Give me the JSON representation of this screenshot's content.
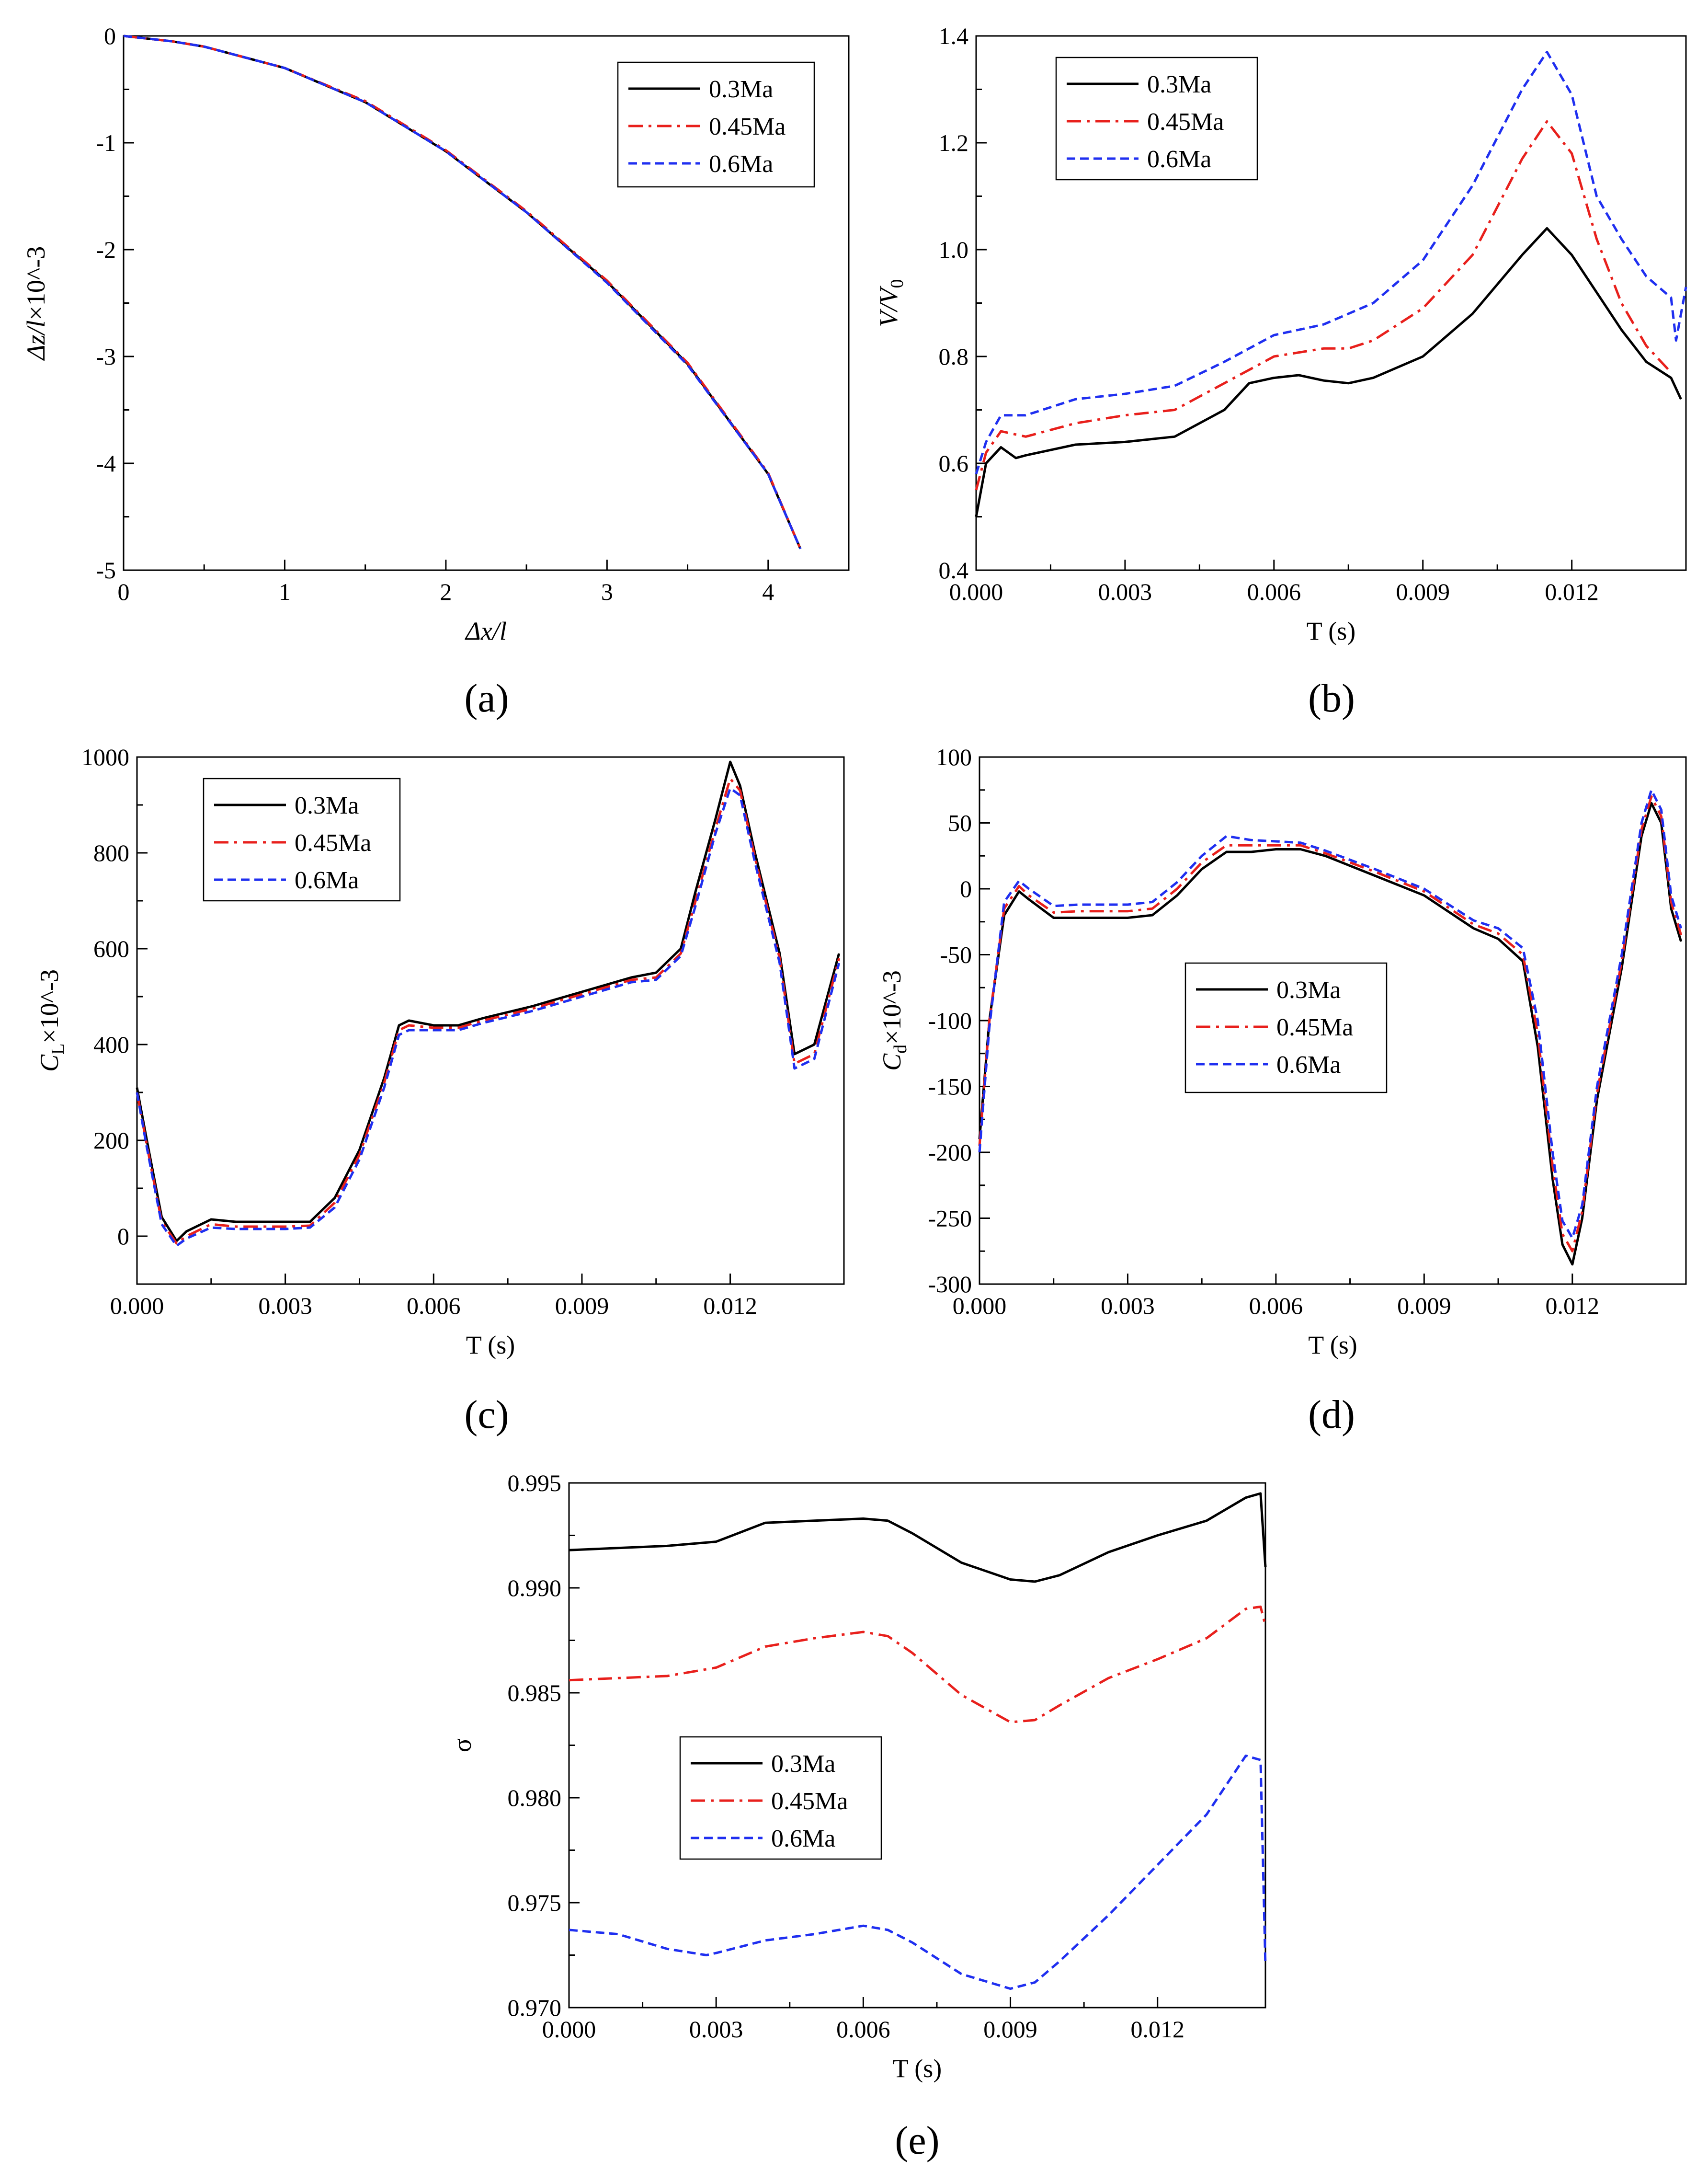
{
  "figure": {
    "panels": [
      "a",
      "b",
      "c",
      "d",
      "e"
    ],
    "series_colors": {
      "0.3Ma": "#000000",
      "0.45Ma": "#e8201c",
      "0.6Ma": "#1f2ff0"
    }
  },
  "chart_data": [
    {
      "id": "a",
      "type": "line",
      "caption": "(a)",
      "xlabel": "Δx/l",
      "ylabel": "Δz/l×10^-3",
      "xlim": [
        0,
        4.5
      ],
      "ylim": [
        -5,
        0
      ],
      "xticks": [
        0,
        1,
        2,
        3,
        4
      ],
      "yticks": [
        0,
        -1,
        -2,
        -3,
        -4,
        -5
      ],
      "xtick_labels": [
        "0",
        "1",
        "2",
        "3",
        "4"
      ],
      "ytick_labels": [
        "0",
        "-1",
        "-2",
        "-3",
        "-4",
        "-5"
      ],
      "legend": [
        "0.3Ma",
        "0.45Ma",
        "0.6Ma"
      ],
      "legend_position": "top-right",
      "series": [
        {
          "name": "0.3Ma",
          "x": [
            0,
            0.3,
            0.5,
            1.0,
            1.5,
            2.0,
            2.5,
            3.0,
            3.5,
            4.0,
            4.2
          ],
          "y": [
            0,
            -0.05,
            -0.1,
            -0.3,
            -0.62,
            -1.08,
            -1.65,
            -2.3,
            -3.07,
            -4.1,
            -4.8
          ]
        },
        {
          "name": "0.45Ma",
          "x": [
            0,
            0.3,
            0.5,
            1.0,
            1.5,
            2.0,
            2.5,
            3.0,
            3.5,
            4.0,
            4.2
          ],
          "y": [
            0,
            -0.05,
            -0.1,
            -0.3,
            -0.61,
            -1.07,
            -1.64,
            -2.29,
            -3.06,
            -4.09,
            -4.8
          ]
        },
        {
          "name": "0.6Ma",
          "x": [
            0,
            0.3,
            0.5,
            1.0,
            1.5,
            2.0,
            2.5,
            3.0,
            3.5,
            4.0,
            4.2
          ],
          "y": [
            0,
            -0.05,
            -0.1,
            -0.3,
            -0.62,
            -1.08,
            -1.65,
            -2.31,
            -3.08,
            -4.1,
            -4.8
          ]
        }
      ]
    },
    {
      "id": "b",
      "type": "line",
      "caption": "(b)",
      "xlabel": "T (s)",
      "ylabel": "V/V0",
      "xlim": [
        0,
        0.0143
      ],
      "ylim": [
        0.4,
        1.4
      ],
      "xticks": [
        0,
        0.003,
        0.006,
        0.009,
        0.012
      ],
      "yticks": [
        0.4,
        0.6,
        0.8,
        1.0,
        1.2,
        1.4
      ],
      "xtick_labels": [
        "0.000",
        "0.003",
        "0.006",
        "0.009",
        "0.012"
      ],
      "ytick_labels": [
        "0.4",
        "0.6",
        "0.8",
        "1.0",
        "1.2",
        "1.4"
      ],
      "legend": [
        "0.3Ma",
        "0.45Ma",
        "0.6Ma"
      ],
      "legend_position": "top-left",
      "series": [
        {
          "name": "0.3Ma",
          "x": [
            0,
            0.0002,
            0.0005,
            0.0008,
            0.001,
            0.002,
            0.003,
            0.004,
            0.005,
            0.0055,
            0.006,
            0.0065,
            0.007,
            0.0075,
            0.008,
            0.009,
            0.01,
            0.011,
            0.0115,
            0.012,
            0.0125,
            0.013,
            0.0135,
            0.014,
            0.0142
          ],
          "y": [
            0.5,
            0.6,
            0.63,
            0.61,
            0.615,
            0.635,
            0.64,
            0.65,
            0.7,
            0.75,
            0.76,
            0.765,
            0.755,
            0.75,
            0.76,
            0.8,
            0.88,
            0.99,
            1.04,
            0.99,
            0.92,
            0.85,
            0.79,
            0.76,
            0.72
          ]
        },
        {
          "name": "0.45Ma",
          "x": [
            0,
            0.0002,
            0.0005,
            0.001,
            0.002,
            0.003,
            0.004,
            0.005,
            0.006,
            0.007,
            0.0075,
            0.008,
            0.009,
            0.01,
            0.011,
            0.0115,
            0.012,
            0.0125,
            0.013,
            0.0135,
            0.014
          ],
          "y": [
            0.55,
            0.62,
            0.66,
            0.65,
            0.675,
            0.69,
            0.7,
            0.75,
            0.8,
            0.815,
            0.815,
            0.83,
            0.89,
            0.99,
            1.17,
            1.24,
            1.18,
            1.02,
            0.9,
            0.82,
            0.77
          ]
        },
        {
          "name": "0.6Ma",
          "x": [
            0,
            0.0002,
            0.0005,
            0.001,
            0.002,
            0.003,
            0.004,
            0.005,
            0.006,
            0.007,
            0.008,
            0.009,
            0.01,
            0.011,
            0.0115,
            0.012,
            0.0125,
            0.013,
            0.0135,
            0.014,
            0.0141,
            0.0143
          ],
          "y": [
            0.58,
            0.64,
            0.69,
            0.69,
            0.72,
            0.73,
            0.745,
            0.79,
            0.84,
            0.86,
            0.9,
            0.98,
            1.12,
            1.3,
            1.37,
            1.29,
            1.1,
            1.02,
            0.95,
            0.91,
            0.83,
            0.93
          ]
        }
      ]
    },
    {
      "id": "c",
      "type": "line",
      "caption": "(c)",
      "xlabel": "T (s)",
      "ylabel": "CL×10^-3",
      "xlim": [
        0,
        0.0143
      ],
      "ylim": [
        -100,
        1000
      ],
      "xticks": [
        0,
        0.003,
        0.006,
        0.009,
        0.012
      ],
      "yticks": [
        0,
        200,
        400,
        600,
        800,
        1000
      ],
      "xtick_labels": [
        "0.000",
        "0.003",
        "0.006",
        "0.009",
        "0.012"
      ],
      "ytick_labels": [
        "0",
        "200",
        "400",
        "600",
        "800",
        "1000"
      ],
      "legend": [
        "0.3Ma",
        "0.45Ma",
        "0.6Ma"
      ],
      "legend_position": "top-left",
      "series": [
        {
          "name": "0.3Ma",
          "x": [
            0,
            0.0002,
            0.0005,
            0.0008,
            0.001,
            0.0015,
            0.002,
            0.003,
            0.0035,
            0.004,
            0.0045,
            0.005,
            0.0053,
            0.0055,
            0.006,
            0.0065,
            0.007,
            0.008,
            0.009,
            0.01,
            0.0105,
            0.011,
            0.0113,
            0.0117,
            0.012,
            0.0122,
            0.0125,
            0.013,
            0.0133,
            0.0137,
            0.0142
          ],
          "y": [
            310,
            200,
            40,
            -10,
            10,
            35,
            30,
            30,
            30,
            80,
            180,
            330,
            440,
            450,
            440,
            440,
            455,
            480,
            510,
            540,
            550,
            600,
            720,
            870,
            990,
            940,
            800,
            590,
            380,
            400,
            590
          ]
        },
        {
          "name": "0.45Ma",
          "x": [
            0,
            0.0002,
            0.0005,
            0.0008,
            0.001,
            0.0015,
            0.002,
            0.003,
            0.0035,
            0.004,
            0.0045,
            0.005,
            0.0053,
            0.0055,
            0.006,
            0.0065,
            0.007,
            0.008,
            0.009,
            0.01,
            0.0105,
            0.011,
            0.0113,
            0.0117,
            0.012,
            0.0122,
            0.0125,
            0.013,
            0.0133,
            0.0137,
            0.0142
          ],
          "y": [
            300,
            190,
            30,
            -15,
            0,
            25,
            20,
            20,
            22,
            70,
            170,
            320,
            430,
            440,
            435,
            435,
            450,
            475,
            505,
            535,
            540,
            590,
            700,
            850,
            955,
            930,
            790,
            580,
            360,
            380,
            580
          ]
        },
        {
          "name": "0.6Ma",
          "x": [
            0,
            0.0002,
            0.0005,
            0.0008,
            0.001,
            0.0015,
            0.002,
            0.003,
            0.0035,
            0.004,
            0.0045,
            0.005,
            0.0053,
            0.0055,
            0.006,
            0.0065,
            0.007,
            0.008,
            0.009,
            0.01,
            0.0105,
            0.011,
            0.0113,
            0.0117,
            0.012,
            0.0122,
            0.0125,
            0.013,
            0.0133,
            0.0137,
            0.0142
          ],
          "y": [
            300,
            185,
            25,
            -20,
            -5,
            18,
            15,
            15,
            18,
            60,
            160,
            310,
            420,
            430,
            430,
            430,
            445,
            470,
            500,
            530,
            535,
            585,
            690,
            840,
            935,
            920,
            780,
            570,
            350,
            370,
            570
          ]
        }
      ]
    },
    {
      "id": "d",
      "type": "line",
      "caption": "(d)",
      "xlabel": "T (s)",
      "ylabel": "Cd×10^-3",
      "xlim": [
        0,
        0.0143
      ],
      "ylim": [
        -300,
        100
      ],
      "xticks": [
        0,
        0.003,
        0.006,
        0.009,
        0.012
      ],
      "yticks": [
        100,
        50,
        0,
        -50,
        -100,
        -150,
        -200,
        -250,
        -300
      ],
      "xtick_labels": [
        "0.000",
        "0.003",
        "0.006",
        "0.009",
        "0.012"
      ],
      "ytick_labels": [
        "100",
        "50",
        "0",
        "-50",
        "-100",
        "-150",
        "-200",
        "-250",
        "-300"
      ],
      "legend": [
        "0.3Ma",
        "0.45Ma",
        "0.6Ma"
      ],
      "legend_position": "center-right",
      "series": [
        {
          "name": "0.3Ma",
          "x": [
            0,
            0.0002,
            0.0005,
            0.0008,
            0.001,
            0.0015,
            0.002,
            0.003,
            0.0035,
            0.004,
            0.0045,
            0.005,
            0.0055,
            0.006,
            0.0065,
            0.007,
            0.008,
            0.009,
            0.01,
            0.0105,
            0.011,
            0.0113,
            0.0116,
            0.0118,
            0.012,
            0.0122,
            0.0125,
            0.0128,
            0.013,
            0.0132,
            0.0134,
            0.0136,
            0.0138,
            0.014,
            0.0142
          ],
          "y": [
            -190,
            -100,
            -20,
            -2,
            -8,
            -22,
            -22,
            -22,
            -20,
            -5,
            15,
            28,
            28,
            30,
            30,
            25,
            10,
            -5,
            -30,
            -38,
            -55,
            -120,
            -220,
            -270,
            -285,
            -250,
            -160,
            -100,
            -60,
            -10,
            40,
            65,
            50,
            -15,
            -40
          ]
        },
        {
          "name": "0.45Ma",
          "x": [
            0,
            0.0002,
            0.0005,
            0.0008,
            0.001,
            0.0015,
            0.002,
            0.003,
            0.0035,
            0.004,
            0.0045,
            0.005,
            0.0055,
            0.006,
            0.0065,
            0.007,
            0.008,
            0.009,
            0.01,
            0.0105,
            0.011,
            0.0113,
            0.0116,
            0.0118,
            0.012,
            0.0122,
            0.0125,
            0.0128,
            0.013,
            0.0132,
            0.0134,
            0.0136,
            0.0138,
            0.014,
            0.0142
          ],
          "y": [
            -195,
            -100,
            -15,
            2,
            -5,
            -18,
            -17,
            -17,
            -15,
            0,
            20,
            33,
            33,
            33,
            33,
            27,
            13,
            -2,
            -27,
            -34,
            -50,
            -110,
            -210,
            -262,
            -275,
            -245,
            -155,
            -95,
            -55,
            -5,
            45,
            70,
            55,
            -10,
            -35
          ]
        },
        {
          "name": "0.6Ma",
          "x": [
            0,
            0.0002,
            0.0005,
            0.0008,
            0.001,
            0.0015,
            0.002,
            0.003,
            0.0035,
            0.004,
            0.0045,
            0.005,
            0.0055,
            0.006,
            0.0065,
            0.007,
            0.008,
            0.009,
            0.01,
            0.0105,
            0.011,
            0.0113,
            0.0116,
            0.0118,
            0.012,
            0.0122,
            0.0125,
            0.0128,
            0.013,
            0.0132,
            0.0134,
            0.0136,
            0.0138,
            0.014,
            0.0142
          ],
          "y": [
            -200,
            -105,
            -10,
            6,
            0,
            -13,
            -12,
            -12,
            -10,
            5,
            25,
            40,
            37,
            36,
            35,
            29,
            15,
            0,
            -24,
            -30,
            -45,
            -100,
            -200,
            -252,
            -265,
            -240,
            -150,
            -90,
            -50,
            0,
            50,
            75,
            60,
            -5,
            -30
          ]
        }
      ]
    },
    {
      "id": "e",
      "type": "line",
      "caption": "(e)",
      "xlabel": "T (s)",
      "ylabel": "σ",
      "xlim": [
        0,
        0.0142
      ],
      "ylim": [
        0.97,
        0.995
      ],
      "xticks": [
        0,
        0.003,
        0.006,
        0.009,
        0.012
      ],
      "yticks": [
        0.97,
        0.975,
        0.98,
        0.985,
        0.99,
        0.995
      ],
      "xtick_labels": [
        "0.000",
        "0.003",
        "0.006",
        "0.009",
        "0.012"
      ],
      "ytick_labels": [
        "0.970",
        "0.975",
        "0.980",
        "0.985",
        "0.990",
        "0.995"
      ],
      "legend": [
        "0.3Ma",
        "0.45Ma",
        "0.6Ma"
      ],
      "legend_position": "center-left",
      "series": [
        {
          "name": "0.3Ma",
          "x": [
            0,
            0.001,
            0.002,
            0.003,
            0.004,
            0.005,
            0.006,
            0.0065,
            0.007,
            0.008,
            0.009,
            0.0095,
            0.01,
            0.011,
            0.012,
            0.013,
            0.0138,
            0.0141,
            0.0142
          ],
          "y": [
            0.9918,
            0.9919,
            0.992,
            0.9922,
            0.9931,
            0.9932,
            0.9933,
            0.9932,
            0.9926,
            0.9912,
            0.9904,
            0.9903,
            0.9906,
            0.9917,
            0.9925,
            0.9932,
            0.9943,
            0.9945,
            0.991
          ]
        },
        {
          "name": "0.45Ma",
          "x": [
            0,
            0.001,
            0.002,
            0.003,
            0.004,
            0.005,
            0.006,
            0.0065,
            0.007,
            0.008,
            0.009,
            0.0095,
            0.01,
            0.011,
            0.012,
            0.013,
            0.0138,
            0.0141,
            0.0142
          ],
          "y": [
            0.9856,
            0.9857,
            0.9858,
            0.9862,
            0.9872,
            0.9876,
            0.9879,
            0.9877,
            0.9869,
            0.9849,
            0.9836,
            0.9837,
            0.9844,
            0.9857,
            0.9866,
            0.9876,
            0.989,
            0.9891,
            0.9882
          ]
        },
        {
          "name": "0.6Ma",
          "x": [
            0,
            0.001,
            0.002,
            0.0028,
            0.003,
            0.004,
            0.005,
            0.006,
            0.0065,
            0.007,
            0.008,
            0.009,
            0.0095,
            0.01,
            0.011,
            0.012,
            0.013,
            0.0138,
            0.0141,
            0.0142
          ],
          "y": [
            0.9737,
            0.9735,
            0.9728,
            0.9725,
            0.9726,
            0.9732,
            0.9735,
            0.9739,
            0.9737,
            0.9731,
            0.9716,
            0.9709,
            0.9712,
            0.9722,
            0.9744,
            0.9768,
            0.9792,
            0.982,
            0.9818,
            0.972
          ]
        }
      ]
    }
  ]
}
